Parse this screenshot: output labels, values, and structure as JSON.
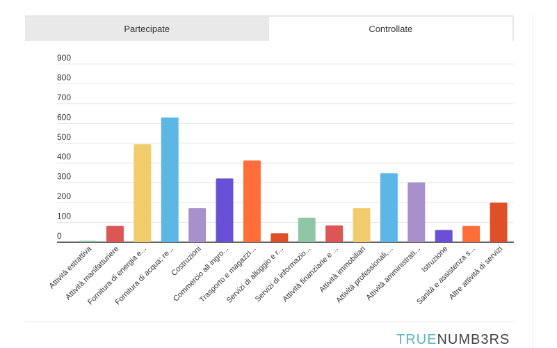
{
  "tabs": [
    {
      "label": "Partecipate",
      "active": false
    },
    {
      "label": "Controllate",
      "active": true
    }
  ],
  "brand": {
    "part1": "TRUE",
    "part2": "NUMB3RS",
    "color1": "#5fb3c9",
    "color2": "#444444"
  },
  "chart_data": {
    "type": "bar",
    "title": "",
    "xlabel": "",
    "ylabel": "",
    "ylim": [
      0,
      900
    ],
    "yticks": [
      0,
      100,
      200,
      300,
      400,
      500,
      600,
      700,
      800,
      900
    ],
    "grid": true,
    "categories": [
      "Attività estrattiva",
      "Attività manifatturiere",
      "Fornitura di energia e...",
      "Fornitura di acqua; re...",
      "Costruzioni",
      "Commercio all ingro...",
      "Trasporto e magazzi...",
      "Servizi di alloggio e r...",
      "Servizi di informazio...",
      "Attività finanziarie e ...",
      "Attività immobiliari",
      "Attività professionali,...",
      "Attività amministrati...",
      "Istruzione",
      "Sanità e assistenza s...",
      "Altre attività di servizi"
    ],
    "values": [
      8,
      82,
      495,
      630,
      172,
      322,
      413,
      45,
      124,
      85,
      172,
      348,
      302,
      62,
      82,
      200
    ],
    "colors": [
      "#8fc6a5",
      "#dc5656",
      "#f0cc6c",
      "#5cb6e6",
      "#a890ca",
      "#6a50d6",
      "#ff6d3a",
      "#e05028",
      "#8fc6a5",
      "#dc5656",
      "#f0cc6c",
      "#5cb6e6",
      "#a890ca",
      "#6a50d6",
      "#ff6d3a",
      "#e05028"
    ]
  }
}
